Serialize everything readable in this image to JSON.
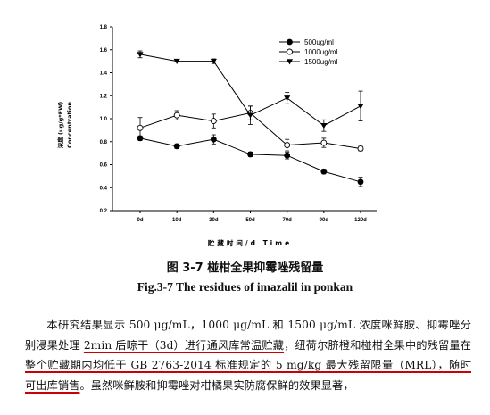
{
  "chart_data": {
    "type": "line",
    "x": [
      "0d",
      "10d",
      "30d",
      "50d",
      "70d",
      "90d",
      "120d"
    ],
    "ylim": [
      0.2,
      1.8
    ],
    "yticks": [
      "0.2",
      "0.4",
      "0.6",
      "0.8",
      "1.0",
      "1.2",
      "1.4",
      "1.6",
      "1.8"
    ],
    "ylabel_line1": "浓度 (ug/g*FW)",
    "ylabel_line2": "Concentration",
    "xlabel": "贮藏时间/d Time",
    "legend_position": "top-right",
    "series": [
      {
        "name": "500ug/ml",
        "marker": "filled-circle",
        "values": [
          0.83,
          0.76,
          0.82,
          0.69,
          0.68,
          0.54,
          0.45
        ],
        "errors": [
          0.02,
          0.02,
          0.04,
          0.02,
          0.03,
          0.02,
          0.04
        ]
      },
      {
        "name": "1000ug/ml",
        "marker": "open-circle",
        "values": [
          0.92,
          1.03,
          0.98,
          1.05,
          0.77,
          0.79,
          0.74
        ],
        "errors": [
          0.09,
          0.04,
          0.06,
          0.06,
          0.05,
          0.04,
          0.02
        ]
      },
      {
        "name": "1500ug/ml",
        "marker": "filled-triangle-down",
        "values": [
          1.56,
          1.5,
          1.5,
          1.03,
          1.18,
          0.94,
          1.11
        ],
        "errors": [
          0.03,
          0.0,
          0.02,
          0.08,
          0.05,
          0.05,
          0.13
        ]
      }
    ]
  },
  "captions": {
    "cn": "图 3-7  椪柑全果抑霉唑残留量",
    "en": "Fig.3-7 The residues of imazalil in ponkan"
  },
  "paragraph": {
    "p1": "本研究结果显示 500 μg/mL，1000 μg/mL 和 1500 μg/mL 浓度咪鲜胺、抑霉唑分别浸果处理 ",
    "u1": "2min 后晾干（3d）进行通风库常温贮藏",
    "p2": "，纽荷尔脐橙和椪柑全果中的残留量在",
    "u2": "整个贮藏期内均低于 GB 2763-2014 标准规定的 5 mg/kg 最大残留限量（MRL），随时可出库销售",
    "p3": "。虽然咪鲜胺和抑霉唑对柑橘果实防腐保鲜的效果显著，"
  }
}
